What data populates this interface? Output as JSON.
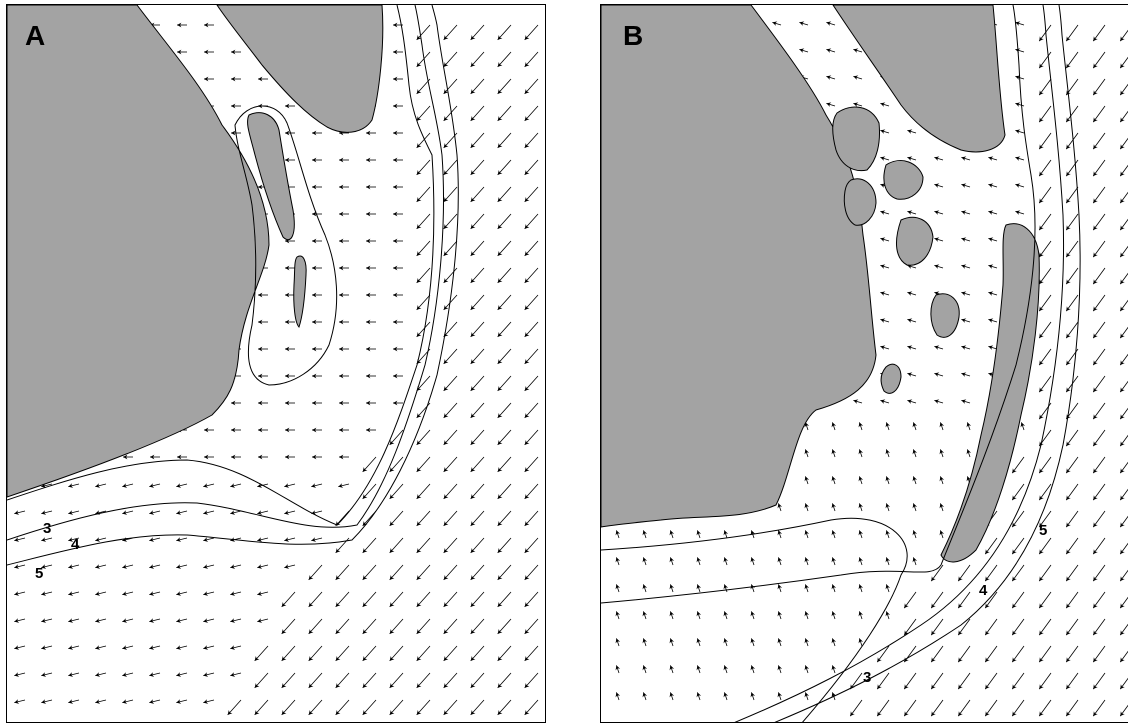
{
  "panels": [
    {
      "label": "A",
      "contour_labels": [
        "3",
        "4",
        "5"
      ]
    },
    {
      "label": "B",
      "contour_labels": [
        "5",
        "4",
        "3"
      ]
    }
  ],
  "colors": {
    "land": "#a3a3a3",
    "water": "#ffffff",
    "lines": "#000000"
  }
}
